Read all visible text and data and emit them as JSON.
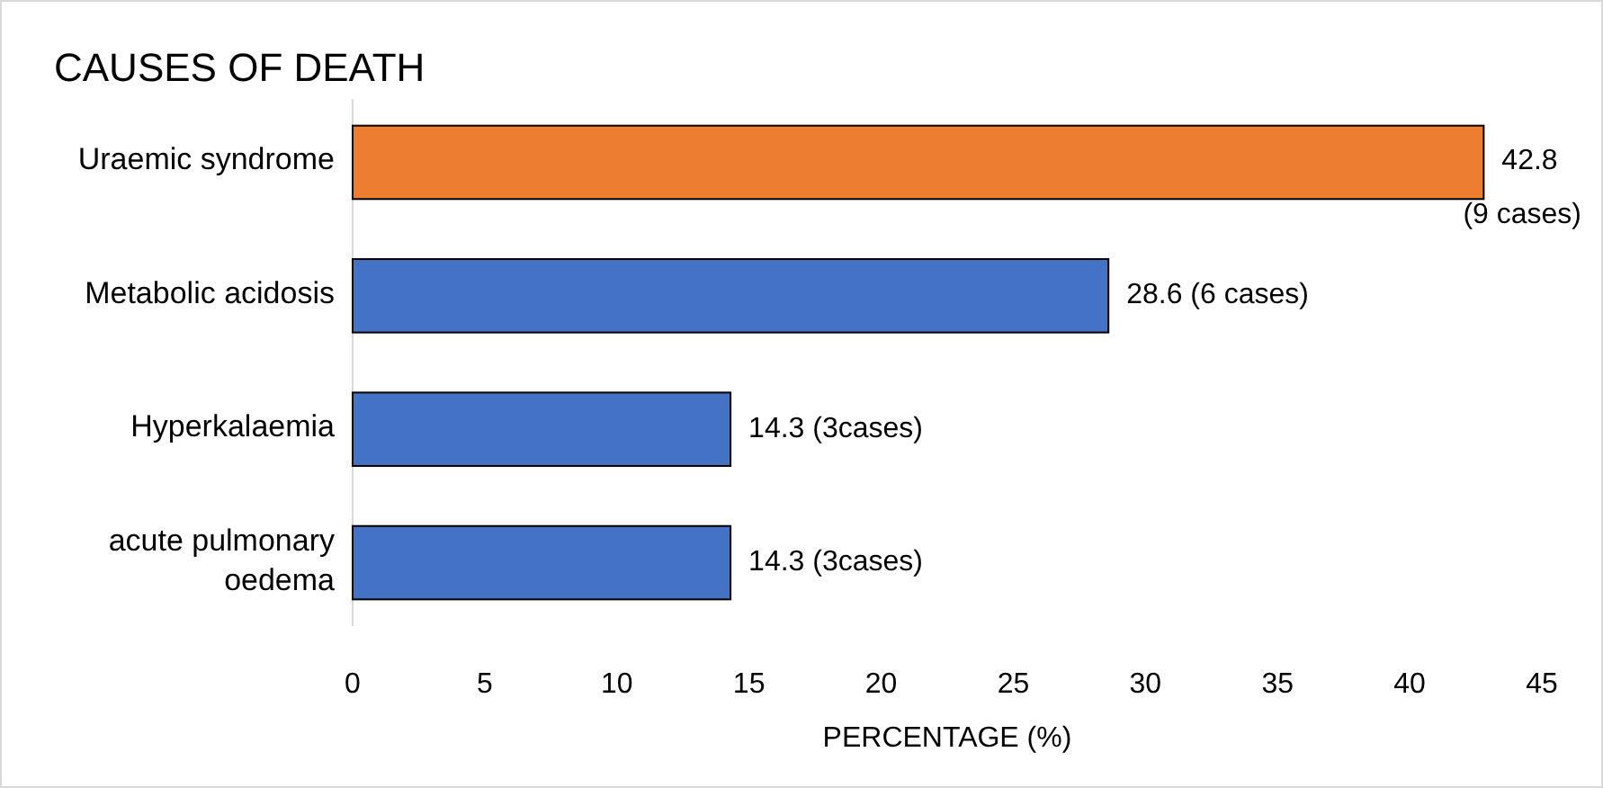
{
  "chart_data": {
    "type": "bar",
    "orientation": "horizontal",
    "title": "CAUSES OF DEATH",
    "xlabel": "PERCENTAGE (%)",
    "categories": [
      "Uraemic syndrome",
      "Metabolic acidosis",
      "Hyperkalaemia",
      "acute pulmonary oedema"
    ],
    "values": [
      42.8,
      28.6,
      14.3,
      14.3
    ],
    "colors": [
      "#ed7d31",
      "#4472c4",
      "#4472c4",
      "#4472c4"
    ],
    "value_labels": [
      "42.8 (9 cases)",
      "28.6 (6 cases)",
      "14.3 (3cases)",
      "14.3 (3cases)"
    ],
    "xlim": [
      0,
      45
    ],
    "xticks": [
      0,
      5,
      10,
      15,
      20,
      25,
      30,
      35,
      40,
      45
    ],
    "grid": false
  }
}
